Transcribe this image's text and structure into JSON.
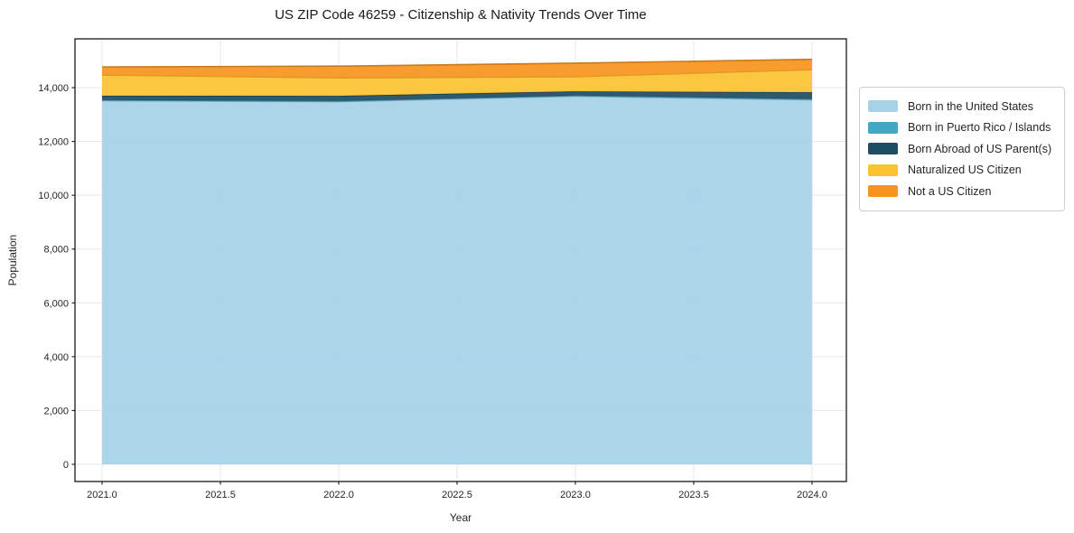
{
  "title": "US ZIP Code 46259 - Citizenship & Nativity Trends Over Time",
  "chart_data": {
    "type": "area",
    "stacked": true,
    "title": "US ZIP Code 46259 - Citizenship & Nativity Trends Over Time",
    "xlabel": "Year",
    "ylabel": "Population",
    "x": [
      2021,
      2022,
      2023,
      2024
    ],
    "xticks": [
      2021.0,
      2021.5,
      2022.0,
      2022.5,
      2023.0,
      2023.5,
      2024.0
    ],
    "xtick_labels": [
      "2021.0",
      "2021.5",
      "2022.0",
      "2022.5",
      "2023.0",
      "2023.5",
      "2024.0"
    ],
    "yticks": [
      0,
      2000,
      4000,
      6000,
      8000,
      10000,
      12000,
      14000
    ],
    "ytick_labels": [
      "0",
      "2,000",
      "4,000",
      "6,000",
      "8,000",
      "10,000",
      "12,000",
      "14,000"
    ],
    "xlim": [
      2020.8855,
      2024.145
    ],
    "ylim": [
      -640,
      15815
    ],
    "grid": true,
    "grid_color": "#e7e7e7",
    "legend_position": "right-outside",
    "series": [
      {
        "name": "Born in the United States",
        "color": "#a6d2e8",
        "values": [
          13515,
          13480,
          13680,
          13545
        ]
      },
      {
        "name": "Born in Puerto Rico / Islands",
        "color": "#44a7c4",
        "values": [
          25,
          25,
          30,
          35
        ]
      },
      {
        "name": "Born Abroad of US Parent(s)",
        "color": "#1f4e63",
        "values": [
          160,
          190,
          155,
          250
        ]
      },
      {
        "name": "Naturalized US Citizen",
        "color": "#fcc331",
        "values": [
          770,
          670,
          540,
          840
        ]
      },
      {
        "name": "Not a US Citizen",
        "color": "#f7941f",
        "values": [
          300,
          435,
          505,
          385
        ]
      }
    ],
    "totals": [
      14770,
      14800,
      14910,
      15055
    ]
  }
}
